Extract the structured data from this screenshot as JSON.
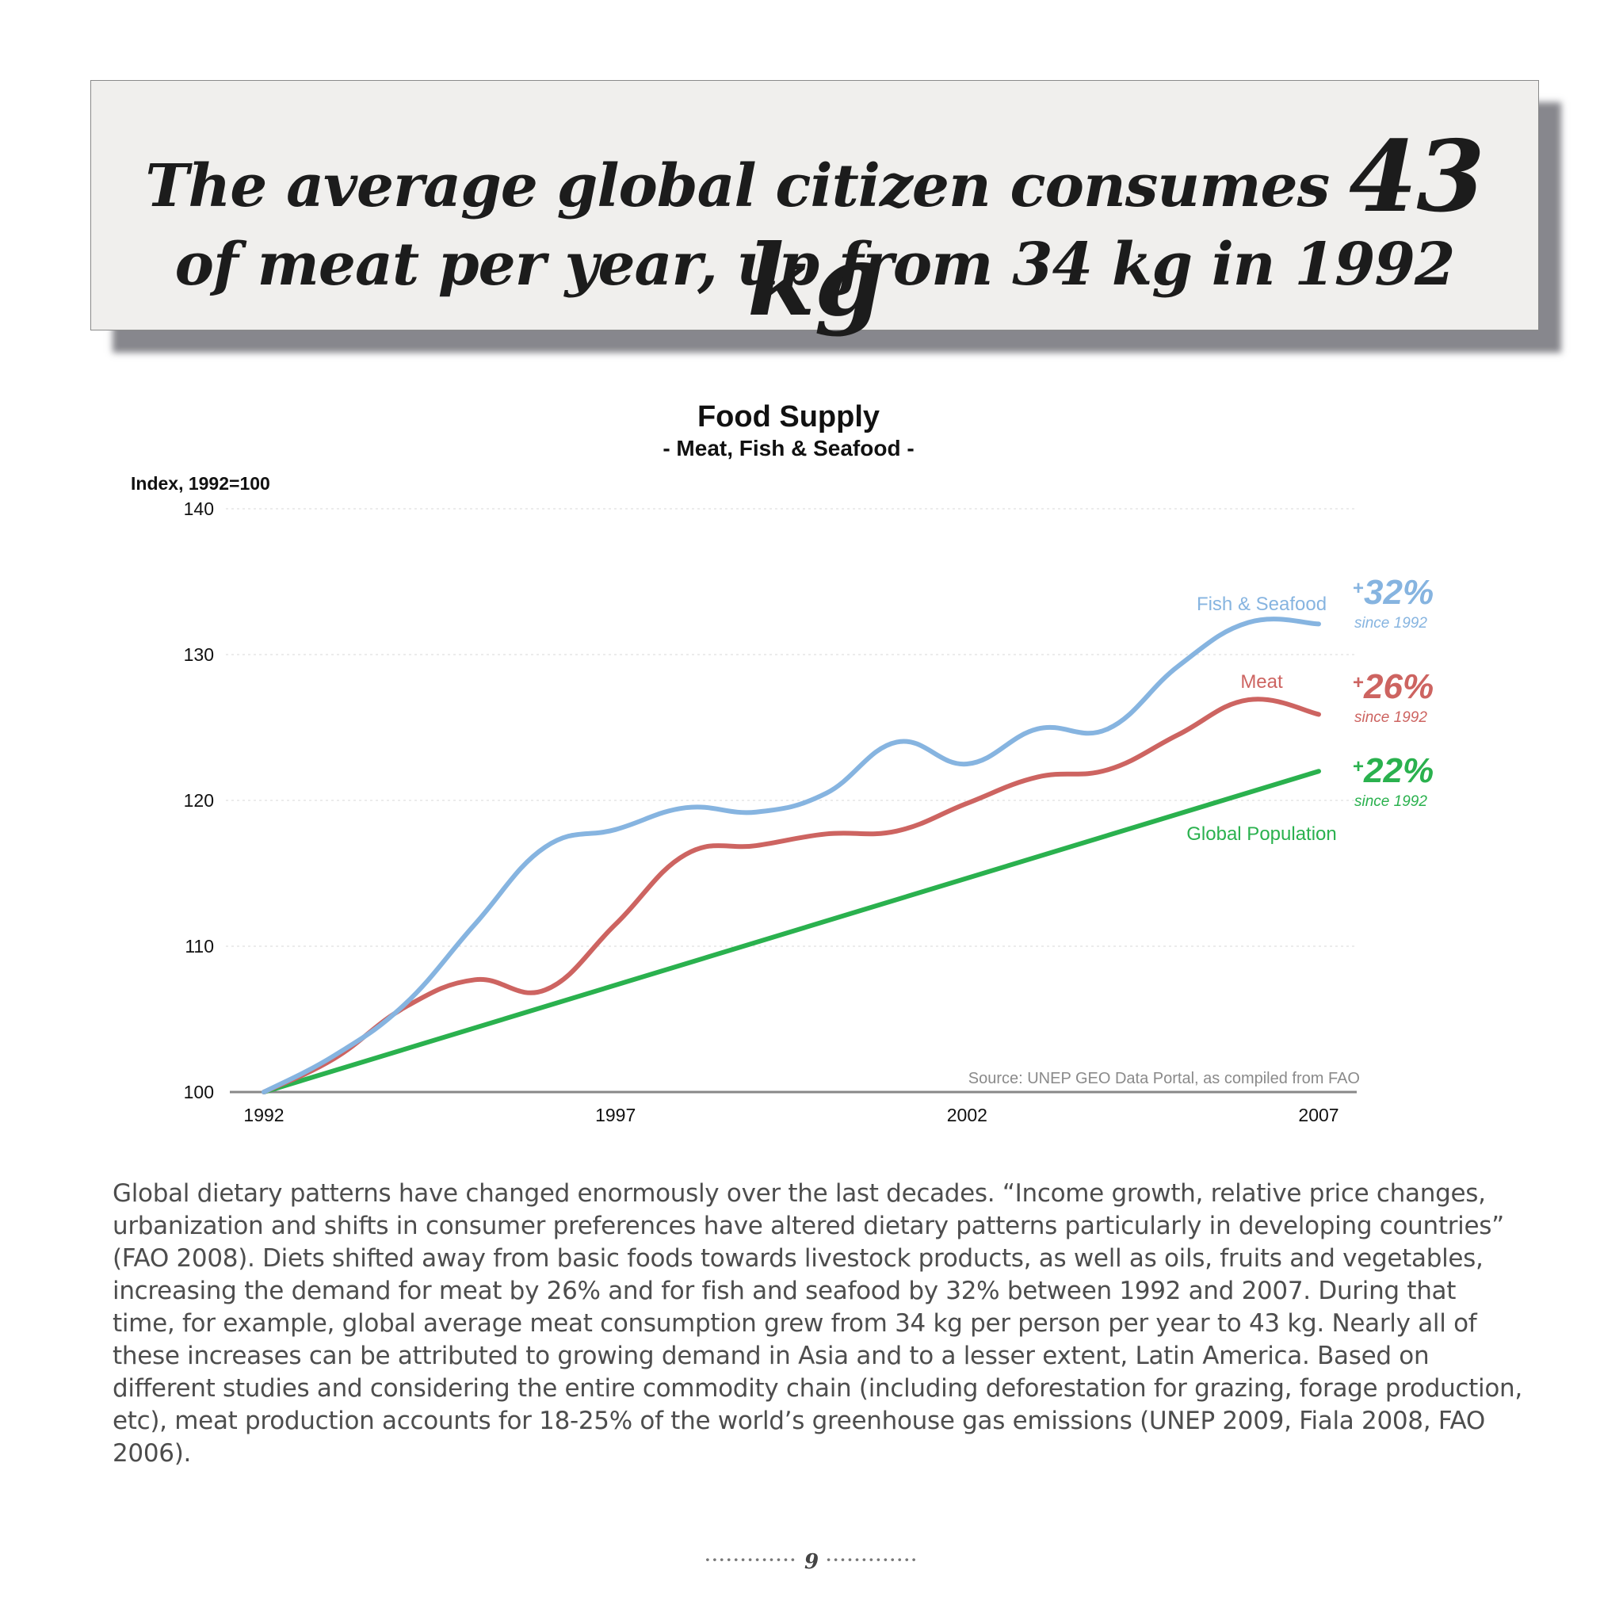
{
  "headline": {
    "line1_prefix": "The average global citizen consumes",
    "line1_emphasis": "43 kg",
    "line2": "of meat per year, up from 34 kg in 1992"
  },
  "chart_data": {
    "type": "line",
    "title": "Food Supply",
    "subtitle": "- Meat, Fish & Seafood -",
    "ylabel": "Index, 1992=100",
    "ylim": [
      100,
      140
    ],
    "yticks": [
      100,
      110,
      120,
      130,
      140
    ],
    "xlim": [
      1992,
      2007
    ],
    "xticks": [
      1992,
      1997,
      2002,
      2007
    ],
    "grid": true,
    "source": "Source: UNEP GEO Data Portal, as compiled from FAO",
    "series": [
      {
        "name": "Fish & Seafood",
        "color": "#86b4e0",
        "x": [
          1992,
          1993,
          1994,
          1995,
          1996,
          1997,
          1998,
          1999,
          2000,
          2001,
          2002,
          2003,
          2004,
          2005,
          2006,
          2007
        ],
        "values": [
          100,
          102.5,
          106,
          111.5,
          116.8,
          118,
          119.5,
          119.2,
          120.5,
          124,
          122.5,
          124.9,
          124.9,
          129.2,
          132.2,
          132.1
        ],
        "annotation": {
          "change": "+32%",
          "since": "since 1992"
        }
      },
      {
        "name": "Meat",
        "color": "#cd6461",
        "x": [
          1992,
          1993,
          1994,
          1995,
          1996,
          1997,
          1998,
          1999,
          2000,
          2001,
          2002,
          2003,
          2004,
          2005,
          2006,
          2007
        ],
        "values": [
          100,
          102.3,
          105.8,
          107.7,
          107,
          111.5,
          116.3,
          116.9,
          117.7,
          117.9,
          119.8,
          121.6,
          122.1,
          124.5,
          126.9,
          125.9
        ],
        "annotation": {
          "change": "+26%",
          "since": "since 1992"
        }
      },
      {
        "name": "Global Population",
        "color": "#2ab14e",
        "x": [
          1992,
          2007
        ],
        "values": [
          100,
          122
        ],
        "annotation": {
          "change": "+22%",
          "since": "since 1992"
        }
      }
    ]
  },
  "body_text": "Global dietary patterns have changed enormously over the last decades. “Income growth, relative price changes, urbanization and shifts in consumer preferences have altered dietary patterns particularly in developing countries” (FAO 2008). Diets shifted away from basic foods towards livestock products, as well as oils, fruits and vegetables, increasing the demand for meat by 26% and for fish and seafood by 32% between 1992 and 2007. During that time, for example, global average meat consumption grew from 34 kg per person per year to 43 kg. Nearly all of these increases can be attributed to growing demand in Asia and to a lesser extent, Latin America. Based on different studies and considering the entire commodity chain (including deforestation for grazing, forage production, etc), meat production accounts for 18-25% of the world’s greenhouse gas emissions (UNEP 2009, Fiala 2008, FAO 2006).",
  "page_number": "9"
}
